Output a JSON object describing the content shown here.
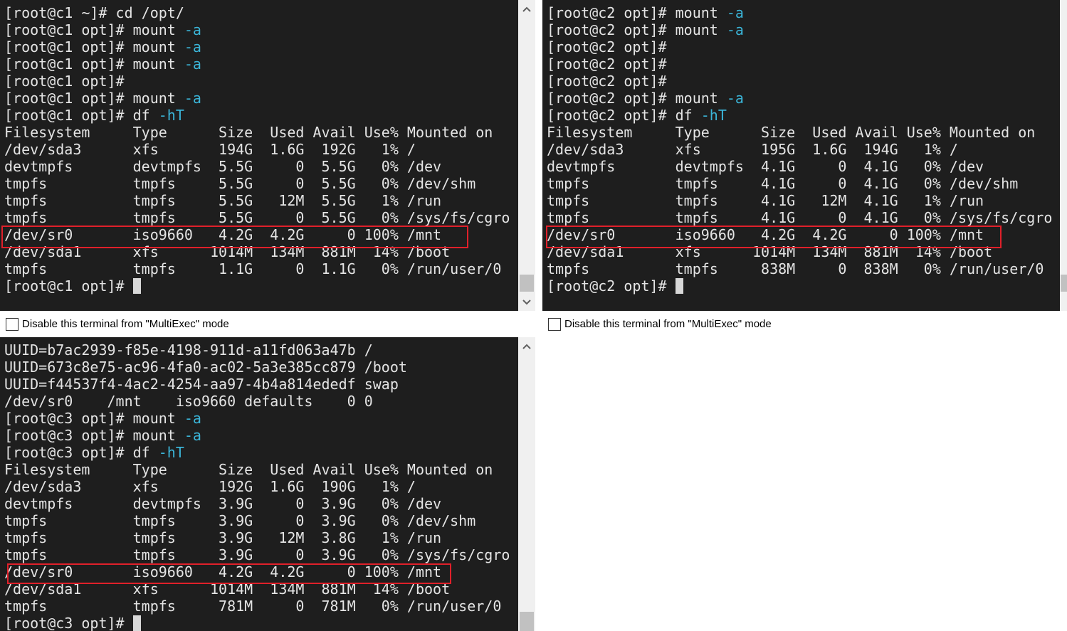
{
  "panes": [
    {
      "lines": [
        "[root@c1 ~]# cd /opt/",
        {
          "text": "[root@c1 opt]# mount ",
          "option": "-a"
        },
        {
          "text": "[root@c1 opt]# mount ",
          "option": "-a"
        },
        {
          "text": "[root@c1 opt]# mount ",
          "option": "-a"
        },
        "[root@c1 opt]#",
        {
          "text": "[root@c1 opt]# mount ",
          "option": "-a"
        },
        {
          "text": "[root@c1 opt]# df ",
          "option": "-hT"
        },
        "Filesystem     Type      Size  Used Avail Use% Mounted on",
        "/dev/sda3      xfs       194G  1.6G  192G   1% /",
        "devtmpfs       devtmpfs  5.5G     0  5.5G   0% /dev",
        "tmpfs          tmpfs     5.5G     0  5.5G   0% /dev/shm",
        "tmpfs          tmpfs     5.5G   12M  5.5G   1% /run",
        "tmpfs          tmpfs     5.5G     0  5.5G   0% /sys/fs/cgro",
        "/dev/sr0       iso9660   4.2G  4.2G     0 100% /mnt",
        "/dev/sda1      xfs      1014M  134M  881M  14% /boot",
        "tmpfs          tmpfs     1.1G     0  1.1G   0% /run/user/0",
        "[root@c1 opt]#"
      ],
      "checkbox_label": "Disable this terminal from \"MultiExec\" mode"
    },
    {
      "lines": [
        {
          "text": "[root@c2 opt]# mount ",
          "option": "-a"
        },
        {
          "text": "[root@c2 opt]# mount ",
          "option": "-a"
        },
        "[root@c2 opt]#",
        "[root@c2 opt]#",
        "[root@c2 opt]#",
        {
          "text": "[root@c2 opt]# mount ",
          "option": "-a"
        },
        {
          "text": "[root@c2 opt]# df ",
          "option": "-hT"
        },
        "Filesystem     Type      Size  Used Avail Use% Mounted on",
        "/dev/sda3      xfs       195G  1.6G  194G   1% /",
        "devtmpfs       devtmpfs  4.1G     0  4.1G   0% /dev",
        "tmpfs          tmpfs     4.1G     0  4.1G   0% /dev/shm",
        "tmpfs          tmpfs     4.1G   12M  4.1G   1% /run",
        "tmpfs          tmpfs     4.1G     0  4.1G   0% /sys/fs/cgro",
        "/dev/sr0       iso9660   4.2G  4.2G     0 100% /mnt",
        "/dev/sda1      xfs      1014M  134M  881M  14% /boot",
        "tmpfs          tmpfs     838M     0  838M   0% /run/user/0",
        "[root@c2 opt]#"
      ],
      "checkbox_label": "Disable this terminal from \"MultiExec\" mode"
    },
    {
      "lines": [
        "UUID=b7ac2939-f85e-4198-911d-a11fd063a47b /",
        "UUID=673c8e75-ac96-4fa0-ac02-5a3e385cc879 /boot",
        "UUID=f44537f4-4ac2-4254-aa97-4b4a814ededf swap",
        "/dev/sr0    /mnt    iso9660 defaults    0 0",
        {
          "text": "[root@c3 opt]# mount ",
          "option": "-a"
        },
        {
          "text": "[root@c3 opt]# mount ",
          "option": "-a"
        },
        {
          "text": "[root@c3 opt]# df ",
          "option": "-hT"
        },
        "Filesystem     Type      Size  Used Avail Use% Mounted on",
        "/dev/sda3      xfs       192G  1.6G  190G   1% /",
        "devtmpfs       devtmpfs  3.9G     0  3.9G   0% /dev",
        "tmpfs          tmpfs     3.9G     0  3.9G   0% /dev/shm",
        "tmpfs          tmpfs     3.9G   12M  3.8G   1% /run",
        "tmpfs          tmpfs     3.9G     0  3.9G   0% /sys/fs/cgro",
        "/dev/sr0       iso9660   4.2G  4.2G     0 100% /mnt",
        "/dev/sda1      xfs      1014M  134M  881M  14% /boot",
        "tmpfs          tmpfs     781M     0  781M   0% /run/user/0",
        "[root@c3 opt]#"
      ]
    }
  ]
}
